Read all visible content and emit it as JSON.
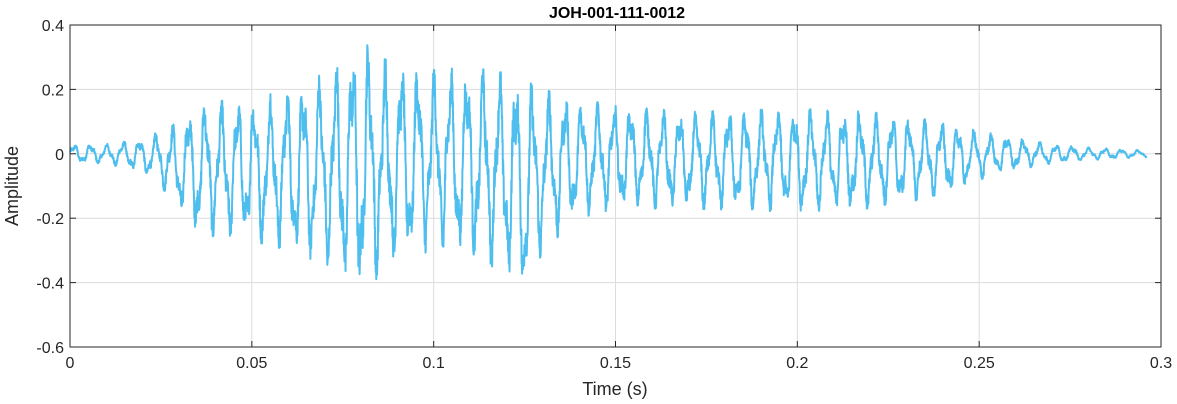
{
  "chart_data": {
    "type": "line",
    "title": "JOH-001-111-0012",
    "xlabel": "Time (s)",
    "ylabel": "Amplitude",
    "xlim": [
      0,
      0.3
    ],
    "ylim": [
      -0.6,
      0.4
    ],
    "xticks": [
      0,
      0.05,
      0.1,
      0.15,
      0.2,
      0.25,
      0.3
    ],
    "xtick_labels": [
      "0",
      "0.05",
      "0.1",
      "0.15",
      "0.2",
      "0.25",
      "0.3"
    ],
    "yticks": [
      -0.6,
      -0.4,
      -0.2,
      0,
      0.2,
      0.4
    ],
    "ytick_labels": [
      "-0.6",
      "-0.4",
      "-0.2",
      "0",
      "0.2",
      "0.4"
    ],
    "grid": true,
    "line_color": "#4DBEEE",
    "series": [
      {
        "x_start": 0,
        "x_end": 0.296,
        "envelope_x": [
          0,
          0.01,
          0.02,
          0.025,
          0.03,
          0.035,
          0.05,
          0.06,
          0.07,
          0.075,
          0.08,
          0.085,
          0.09,
          0.1,
          0.11,
          0.12,
          0.125,
          0.13,
          0.14,
          0.15,
          0.17,
          0.2,
          0.22,
          0.24,
          0.25,
          0.26,
          0.27,
          0.28,
          0.296
        ],
        "envelope_max": [
          0.03,
          0.03,
          0.05,
          0.07,
          0.1,
          0.16,
          0.17,
          0.2,
          0.25,
          0.3,
          0.36,
          0.3,
          0.28,
          0.26,
          0.27,
          0.25,
          0.23,
          0.2,
          0.17,
          0.15,
          0.13,
          0.14,
          0.13,
          0.1,
          0.07,
          0.05,
          0.03,
          0.02,
          0.01
        ],
        "envelope_min": [
          -0.03,
          -0.03,
          -0.06,
          -0.1,
          -0.18,
          -0.25,
          -0.27,
          -0.3,
          -0.35,
          -0.4,
          -0.44,
          -0.38,
          -0.33,
          -0.3,
          -0.32,
          -0.37,
          -0.45,
          -0.3,
          -0.2,
          -0.17,
          -0.17,
          -0.18,
          -0.17,
          -0.13,
          -0.08,
          -0.05,
          -0.03,
          -0.02,
          -0.01
        ],
        "dominant_period_s": 0.0045
      }
    ]
  }
}
